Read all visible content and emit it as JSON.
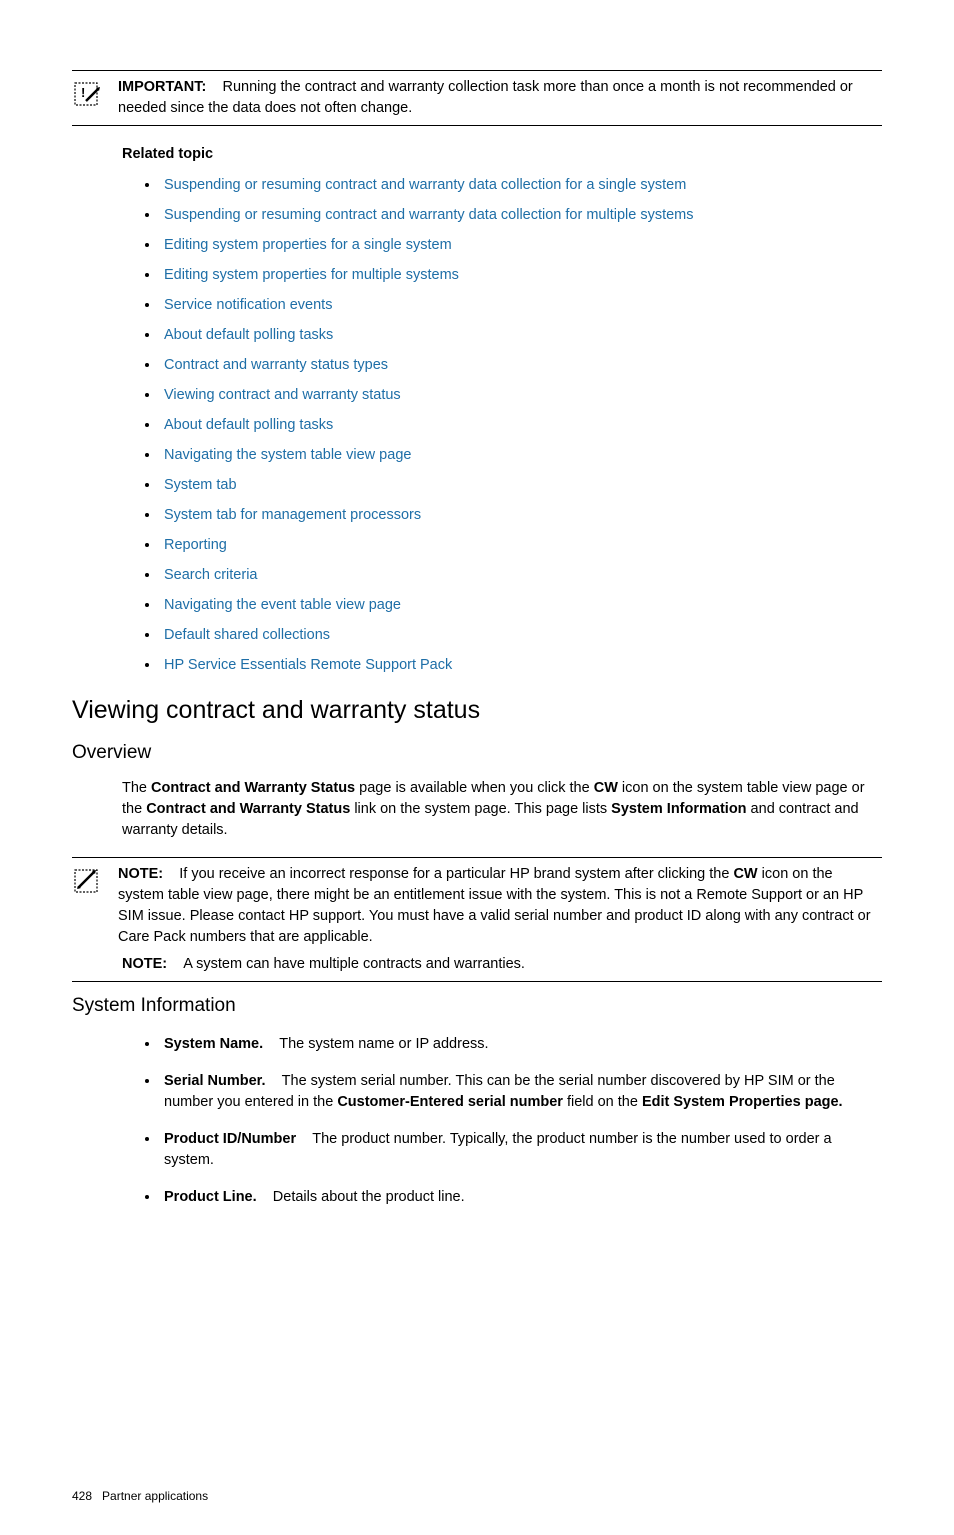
{
  "important": {
    "label": "IMPORTANT:",
    "text_a": "Running the contract and warranty collection task more than once a month is not recommended or needed since the data does not often change."
  },
  "related_topic_heading": "Related topic",
  "related_links": [
    "Suspending or resuming contract and warranty data collection for a single system",
    "Suspending or resuming contract and warranty data collection for multiple systems",
    "Editing system properties for a single system",
    "Editing system properties for multiple systems",
    "Service notification events",
    "About default polling tasks",
    "Contract and warranty status types",
    "Viewing contract and warranty status",
    "About default polling tasks",
    "Navigating the system table view page",
    "System tab",
    "System tab for management processors",
    "Reporting",
    "Search criteria",
    "Navigating the event table view page",
    "Default shared collections",
    "HP Service Essentials Remote Support Pack"
  ],
  "h2": "Viewing contract and warranty status",
  "overview": {
    "heading": "Overview",
    "p1_a": "The ",
    "p1_b": "Contract and Warranty Status",
    "p1_c": " page is available when you click the ",
    "p1_d": "CW",
    "p1_e": " icon on the system table view page or the ",
    "p1_f": "Contract and Warranty Status",
    "p1_g": " link on the system page. This page lists ",
    "p1_h": "System Information",
    "p1_i": " and contract and warranty details."
  },
  "note1": {
    "label": "NOTE:",
    "a": "If you receive an incorrect response for a particular HP brand system after clicking the ",
    "b": "CW",
    "c": " icon on the system table view page, there might be an entitlement issue with the system. This is not a Remote Support or an HP SIM issue. Please contact HP support. You must have a valid serial number and product ID along with any contract or Care Pack numbers that are applicable."
  },
  "note2": {
    "label": "NOTE:",
    "text": "A system can have multiple contracts and warranties."
  },
  "sysinfo": {
    "heading": "System Information",
    "items": [
      {
        "term": "System Name.",
        "def": "The system name or IP address.",
        "extra_bold": null,
        "extra_after": null,
        "extra_bold2": null,
        "extra_after2": null
      },
      {
        "term": "Serial Number.",
        "def": "The system serial number. This can be the serial number discovered by HP SIM or the number you entered in the ",
        "extra_bold": "Customer-Entered serial number",
        "extra_after": " field on the ",
        "extra_bold2": "Edit System Properties page.",
        "extra_after2": ""
      },
      {
        "term": "Product ID/Number",
        "def": "The product number. Typically, the product number is the number used to order a system.",
        "extra_bold": null,
        "extra_after": null,
        "extra_bold2": null,
        "extra_after2": null
      },
      {
        "term": "Product Line.",
        "def": "Details about the product line.",
        "extra_bold": null,
        "extra_after": null,
        "extra_bold2": null,
        "extra_after2": null
      }
    ]
  },
  "footer": {
    "page": "428",
    "section": "Partner applications"
  }
}
